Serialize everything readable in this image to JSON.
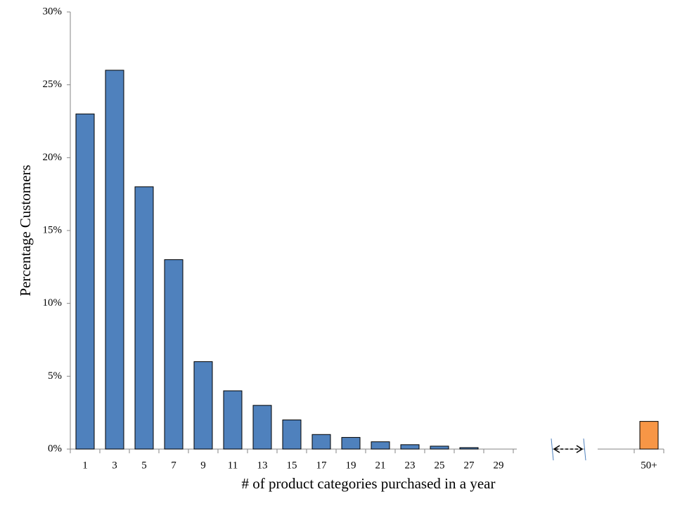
{
  "chart_data": {
    "type": "bar",
    "x_label": "# of product categories purchased in a year",
    "y_label": "Percentage Customers",
    "categories": [
      "1",
      "3",
      "5",
      "7",
      "9",
      "11",
      "13",
      "15",
      "17",
      "19",
      "21",
      "23",
      "25",
      "27",
      "29",
      "50+"
    ],
    "values": [
      23,
      26,
      18,
      13,
      6,
      4,
      3,
      2,
      1,
      0.8,
      0.5,
      0.3,
      0.2,
      0.1,
      0,
      1.9
    ],
    "colors": [
      "#4f81bd",
      "#4f81bd",
      "#4f81bd",
      "#4f81bd",
      "#4f81bd",
      "#4f81bd",
      "#4f81bd",
      "#4f81bd",
      "#4f81bd",
      "#4f81bd",
      "#4f81bd",
      "#4f81bd",
      "#4f81bd",
      "#4f81bd",
      "#4f81bd",
      "#f79646"
    ],
    "ylim": [
      0,
      30
    ],
    "yticks": [
      {
        "value": 0,
        "label": "0%"
      },
      {
        "value": 5,
        "label": "5%"
      },
      {
        "value": 10,
        "label": "10%"
      },
      {
        "value": 15,
        "label": "15%"
      },
      {
        "value": 20,
        "label": "20%"
      },
      {
        "value": 25,
        "label": "25%"
      },
      {
        "value": 30,
        "label": "30%"
      }
    ],
    "grid": false
  }
}
